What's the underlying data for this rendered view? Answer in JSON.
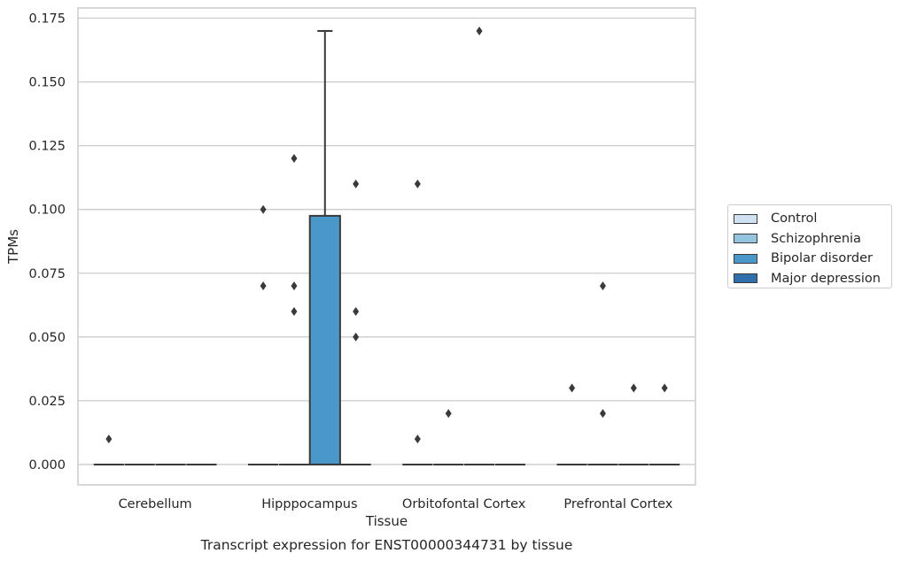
{
  "chart_data": {
    "type": "box",
    "title": "Transcript expression for ENST00000344731 by tissue",
    "xlabel": "Tissue",
    "ylabel": "TPMs",
    "ylim": [
      -0.008,
      0.179
    ],
    "yticks": [
      "0.000",
      "0.025",
      "0.050",
      "0.075",
      "0.100",
      "0.125",
      "0.150",
      "0.175"
    ],
    "grid": true,
    "legend_position": "right-center",
    "categories": [
      "Cerebellum",
      "Hipppocampus",
      "Orbitofontal Cortex",
      "Prefrontal Cortex"
    ],
    "series": [
      {
        "name": "Control",
        "color": "#d0e1f2",
        "boxes": [
          {
            "q1": 0,
            "median": 0,
            "q3": 0,
            "whisker_low": 0,
            "whisker_high": 0,
            "outliers": [
              0.01
            ]
          },
          {
            "q1": 0,
            "median": 0,
            "q3": 0,
            "whisker_low": 0,
            "whisker_high": 0,
            "outliers": [
              0.07,
              0.1
            ]
          },
          {
            "q1": 0,
            "median": 0,
            "q3": 0,
            "whisker_low": 0,
            "whisker_high": 0,
            "outliers": [
              0.01,
              0.11
            ]
          },
          {
            "q1": 0,
            "median": 0,
            "q3": 0,
            "whisker_low": 0,
            "whisker_high": 0,
            "outliers": [
              0.03
            ]
          }
        ]
      },
      {
        "name": "Schizophrenia",
        "color": "#94c4df",
        "boxes": [
          {
            "q1": 0,
            "median": 0,
            "q3": 0,
            "whisker_low": 0,
            "whisker_high": 0,
            "outliers": []
          },
          {
            "q1": 0,
            "median": 0,
            "q3": 0,
            "whisker_low": 0,
            "whisker_high": 0,
            "outliers": [
              0.06,
              0.07,
              0.12
            ]
          },
          {
            "q1": 0,
            "median": 0,
            "q3": 0,
            "whisker_low": 0,
            "whisker_high": 0,
            "outliers": [
              0.02
            ]
          },
          {
            "q1": 0,
            "median": 0,
            "q3": 0,
            "whisker_low": 0,
            "whisker_high": 0,
            "outliers": [
              0.02,
              0.07
            ]
          }
        ]
      },
      {
        "name": "Bipolar disorder",
        "color": "#4a98c9",
        "boxes": [
          {
            "q1": 0,
            "median": 0,
            "q3": 0,
            "whisker_low": 0,
            "whisker_high": 0,
            "outliers": []
          },
          {
            "q1": 0,
            "median": 0,
            "q3": 0.0975,
            "whisker_low": 0,
            "whisker_high": 0.17,
            "outliers": []
          },
          {
            "q1": 0,
            "median": 0,
            "q3": 0,
            "whisker_low": 0,
            "whisker_high": 0,
            "outliers": [
              0.17
            ]
          },
          {
            "q1": 0,
            "median": 0,
            "q3": 0,
            "whisker_low": 0,
            "whisker_high": 0,
            "outliers": [
              0.03
            ]
          }
        ]
      },
      {
        "name": "Major depression",
        "color": "#2e6fac",
        "boxes": [
          {
            "q1": 0,
            "median": 0,
            "q3": 0,
            "whisker_low": 0,
            "whisker_high": 0,
            "outliers": []
          },
          {
            "q1": 0,
            "median": 0,
            "q3": 0,
            "whisker_low": 0,
            "whisker_high": 0,
            "outliers": [
              0.05,
              0.06,
              0.11
            ]
          },
          {
            "q1": 0,
            "median": 0,
            "q3": 0,
            "whisker_low": 0,
            "whisker_high": 0,
            "outliers": []
          },
          {
            "q1": 0,
            "median": 0,
            "q3": 0,
            "whisker_low": 0,
            "whisker_high": 0,
            "outliers": [
              0.03
            ]
          }
        ]
      }
    ]
  }
}
